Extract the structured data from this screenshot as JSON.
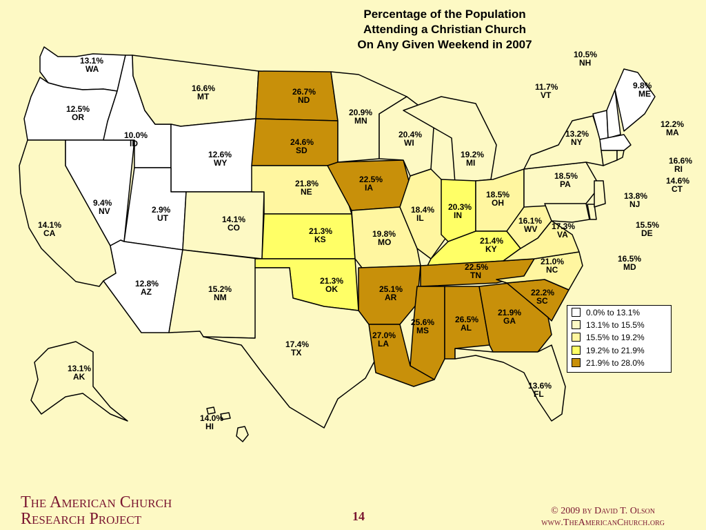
{
  "title": [
    "Percentage of the Population",
    "Attending a Christian Church",
    "On Any Given Weekend in 2007"
  ],
  "states": [
    {
      "abbr": "WA",
      "value": "13.1%"
    },
    {
      "abbr": "OR",
      "value": "12.5%"
    },
    {
      "abbr": "CA",
      "value": "14.1%"
    },
    {
      "abbr": "NV",
      "value": "9.4%"
    },
    {
      "abbr": "ID",
      "value": "10.0%"
    },
    {
      "abbr": "MT",
      "value": "16.6%"
    },
    {
      "abbr": "WY",
      "value": "12.6%"
    },
    {
      "abbr": "UT",
      "value": "2.9%"
    },
    {
      "abbr": "AZ",
      "value": "12.8%"
    },
    {
      "abbr": "CO",
      "value": "14.1%"
    },
    {
      "abbr": "NM",
      "value": "15.2%"
    },
    {
      "abbr": "ND",
      "value": "26.7%"
    },
    {
      "abbr": "SD",
      "value": "24.6%"
    },
    {
      "abbr": "NE",
      "value": "21.8%"
    },
    {
      "abbr": "KS",
      "value": "21.3%"
    },
    {
      "abbr": "OK",
      "value": "21.3%"
    },
    {
      "abbr": "TX",
      "value": "17.4%"
    },
    {
      "abbr": "MN",
      "value": "20.9%"
    },
    {
      "abbr": "IA",
      "value": "22.5%"
    },
    {
      "abbr": "MO",
      "value": "19.8%"
    },
    {
      "abbr": "AR",
      "value": "25.1%"
    },
    {
      "abbr": "LA",
      "value": "27.0%"
    },
    {
      "abbr": "WI",
      "value": "20.4%"
    },
    {
      "abbr": "IL",
      "value": "18.4%"
    },
    {
      "abbr": "MI",
      "value": "19.2%"
    },
    {
      "abbr": "IN",
      "value": "20.3%"
    },
    {
      "abbr": "OH",
      "value": "18.5%"
    },
    {
      "abbr": "KY",
      "value": "21.4%"
    },
    {
      "abbr": "TN",
      "value": "22.5%"
    },
    {
      "abbr": "MS",
      "value": "25.6%"
    },
    {
      "abbr": "AL",
      "value": "26.5%"
    },
    {
      "abbr": "GA",
      "value": "21.9%"
    },
    {
      "abbr": "FL",
      "value": "13.6%"
    },
    {
      "abbr": "SC",
      "value": "22.2%"
    },
    {
      "abbr": "NC",
      "value": "21.0%"
    },
    {
      "abbr": "VA",
      "value": "17.3%"
    },
    {
      "abbr": "WV",
      "value": "16.1%"
    },
    {
      "abbr": "PA",
      "value": "18.5%"
    },
    {
      "abbr": "NY",
      "value": "13.2%"
    },
    {
      "abbr": "VT",
      "value": "11.7%"
    },
    {
      "abbr": "NH",
      "value": "10.5%"
    },
    {
      "abbr": "ME",
      "value": "9.8%"
    },
    {
      "abbr": "MA",
      "value": "12.2%"
    },
    {
      "abbr": "RI",
      "value": "16.6%"
    },
    {
      "abbr": "CT",
      "value": "14.6%"
    },
    {
      "abbr": "NJ",
      "value": "13.8%"
    },
    {
      "abbr": "DE",
      "value": "15.5%"
    },
    {
      "abbr": "MD",
      "value": "16.5%"
    },
    {
      "abbr": "AK",
      "value": "13.1%"
    },
    {
      "abbr": "HI",
      "value": "14.0%"
    }
  ],
  "legend": [
    {
      "label": "0.0% to 13.1%",
      "color": "#ffffff"
    },
    {
      "label": "13.1% to 15.5%",
      "color": "#fdf9c4"
    },
    {
      "label": "15.5% to 19.2%",
      "color": "#fff6a0"
    },
    {
      "label": "19.2% to 21.9%",
      "color": "#ffff66"
    },
    {
      "label": "21.9% to 28.0%",
      "color": "#c8900a"
    }
  ],
  "footer": {
    "org_line1": "The American Church",
    "org_line2": "Research Project",
    "page": "14",
    "copyright": "© 2009 by David T. Olson",
    "website": "www.TheAmericanChurch.org"
  },
  "colors": {
    "background": "#fdf9c4",
    "accent": "#7a1530"
  }
}
